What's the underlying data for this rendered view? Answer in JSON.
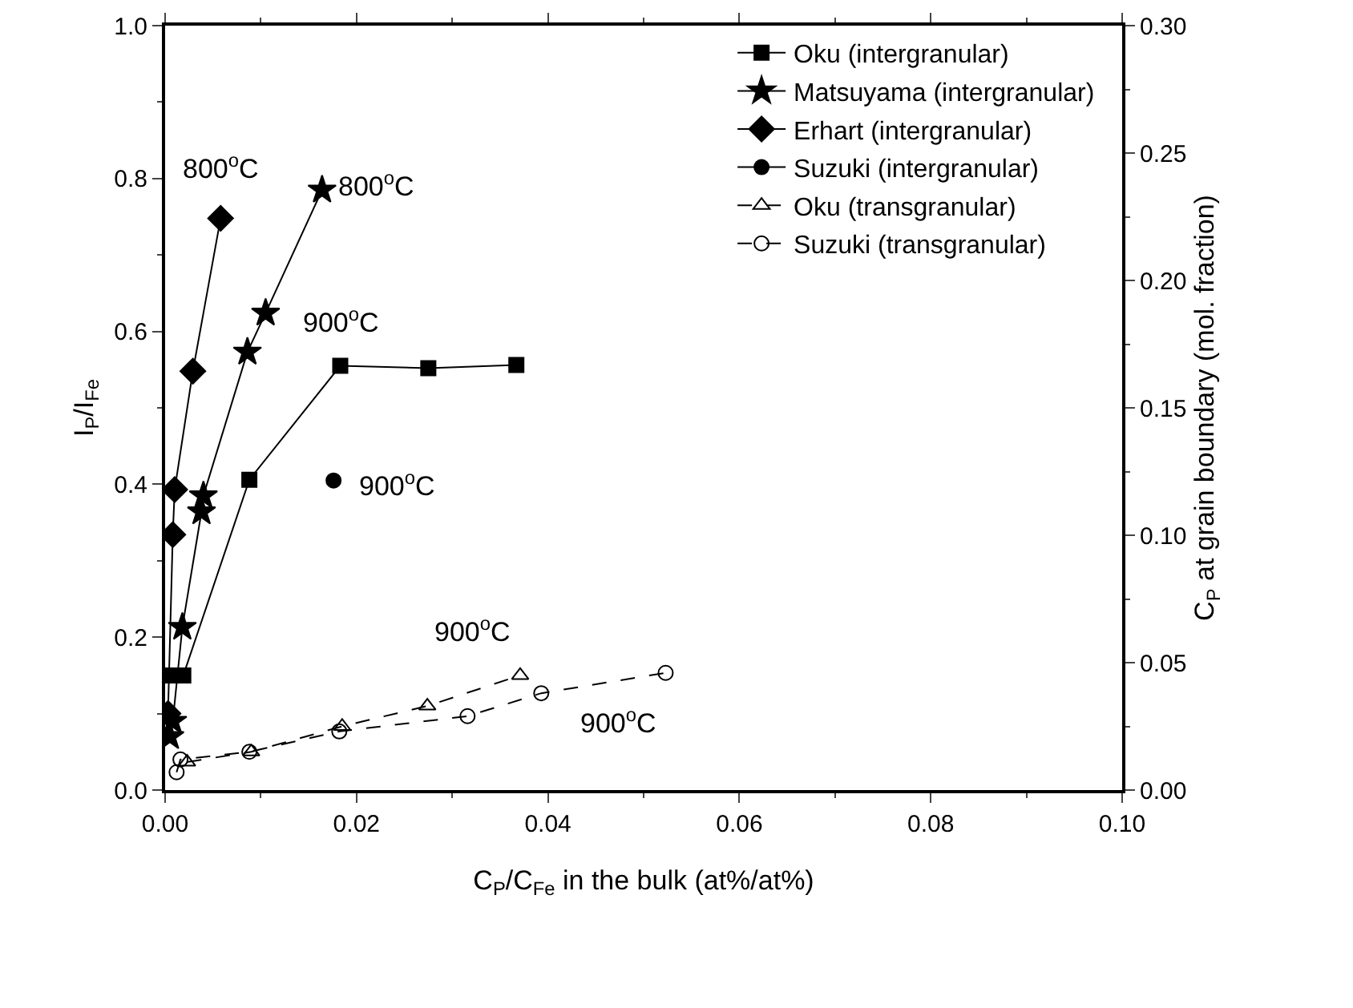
{
  "chart_data": {
    "type": "line",
    "xlabel": "C$_{P}$/C$_{Fe}$ in the bulk (at%/at%)",
    "ylabel": "I$_{P}$/I$_{Fe}$",
    "y2label": "C$_{P}$ at grain boundary (mol. fraction)",
    "xlim": [
      0,
      0.1
    ],
    "xticks": [
      {
        "value": 0,
        "label": "0.00"
      },
      {
        "value": 0.02,
        "label": "0.02"
      },
      {
        "value": 0.04,
        "label": "0.04"
      },
      {
        "value": 0.06,
        "label": "0.06"
      },
      {
        "value": 0.08,
        "label": "0.08"
      },
      {
        "value": 0.1,
        "label": "0.10"
      }
    ],
    "ylim": [
      0,
      1
    ],
    "yticks": [
      {
        "value": 0,
        "label": "0.0"
      },
      {
        "value": 0.2,
        "label": "0.2"
      },
      {
        "value": 0.4,
        "label": "0.4"
      },
      {
        "value": 0.6,
        "label": "0.6"
      },
      {
        "value": 0.8,
        "label": "0.8"
      },
      {
        "value": 1,
        "label": "1.0"
      }
    ],
    "y2lim": [
      0,
      0.3
    ],
    "y2ticks": [
      {
        "value": 0,
        "label": "0.00"
      },
      {
        "value": 0.05,
        "label": "0.05"
      },
      {
        "value": 0.1,
        "label": "0.10"
      },
      {
        "value": 0.15,
        "label": "0.15"
      },
      {
        "value": 0.2,
        "label": "0.20"
      },
      {
        "value": 0.25,
        "label": "0.25"
      },
      {
        "value": 0.3,
        "label": "0.30"
      }
    ],
    "grid": false,
    "legend": "top right",
    "series": [
      {
        "name": "Oku (intergranular)",
        "color": "#000000",
        "marker": "square",
        "line_style": "solid",
        "x": [
          0.0006,
          0.0019,
          0.0088,
          0.0183,
          0.0275,
          0.0367
        ],
        "values": [
          0.15,
          0.15,
          0.406,
          0.555,
          0.552,
          0.556
        ]
      },
      {
        "name": "Matsuyama (intergranular)",
        "color": "#000000",
        "marker": "star",
        "line_style": "solid",
        "x": [
          0.0005,
          0.0008,
          0.0018,
          0.0038,
          0.004,
          0.0086,
          0.0105,
          0.0164
        ],
        "values": [
          0.07,
          0.09,
          0.213,
          0.364,
          0.385,
          0.573,
          0.624,
          0.785
        ]
      },
      {
        "name": "Erhart (intergranular)",
        "color": "#000000",
        "marker": "diamond",
        "line_style": "solid",
        "x": [
          0.0003,
          0.0008,
          0.001,
          0.0029,
          0.0058
        ],
        "values": [
          0.1,
          0.334,
          0.393,
          0.548,
          0.748
        ]
      },
      {
        "name": "Suzuki (intergranular)",
        "color": "#000000",
        "marker": "circle",
        "line_style": "solid",
        "x": [
          0.0176
        ],
        "values": [
          0.405
        ]
      },
      {
        "name": "Oku (transgranular)",
        "color": "#000000",
        "marker": "triangle-open",
        "line_style": "dashed",
        "axis": "y2",
        "x": [
          0.0023,
          0.009,
          0.0185,
          0.0274,
          0.0371
        ],
        "values": [
          0.011,
          0.015,
          0.025,
          0.033,
          0.045
        ]
      },
      {
        "name": "Suzuki (transgranular)",
        "color": "#000000",
        "marker": "circle-open",
        "line_style": "dashed",
        "axis": "y2",
        "x": [
          0.0012,
          0.0016,
          0.0088,
          0.0182,
          0.0316,
          0.0393,
          0.0523
        ],
        "values": [
          0.007,
          0.012,
          0.015,
          0.023,
          0.029,
          0.038,
          0.046
        ]
      }
    ],
    "annotations": [
      {
        "text": "800$^{o}$C",
        "x": 0.0058,
        "y": 0.748
      },
      {
        "text": "800$^{o}$C",
        "x": 0.0164,
        "y": 0.785
      },
      {
        "text": "900$^{o}$C",
        "x": 0.0183,
        "y": 0.555
      },
      {
        "text": "900$^{o}$C",
        "x": 0.0176,
        "y": 0.405
      },
      {
        "text": "900$^{o}$C",
        "x": 0.0371,
        "y": 0.15
      },
      {
        "text": "900$^{o}$C",
        "x": 0.0523,
        "y": 0.154
      }
    ]
  }
}
